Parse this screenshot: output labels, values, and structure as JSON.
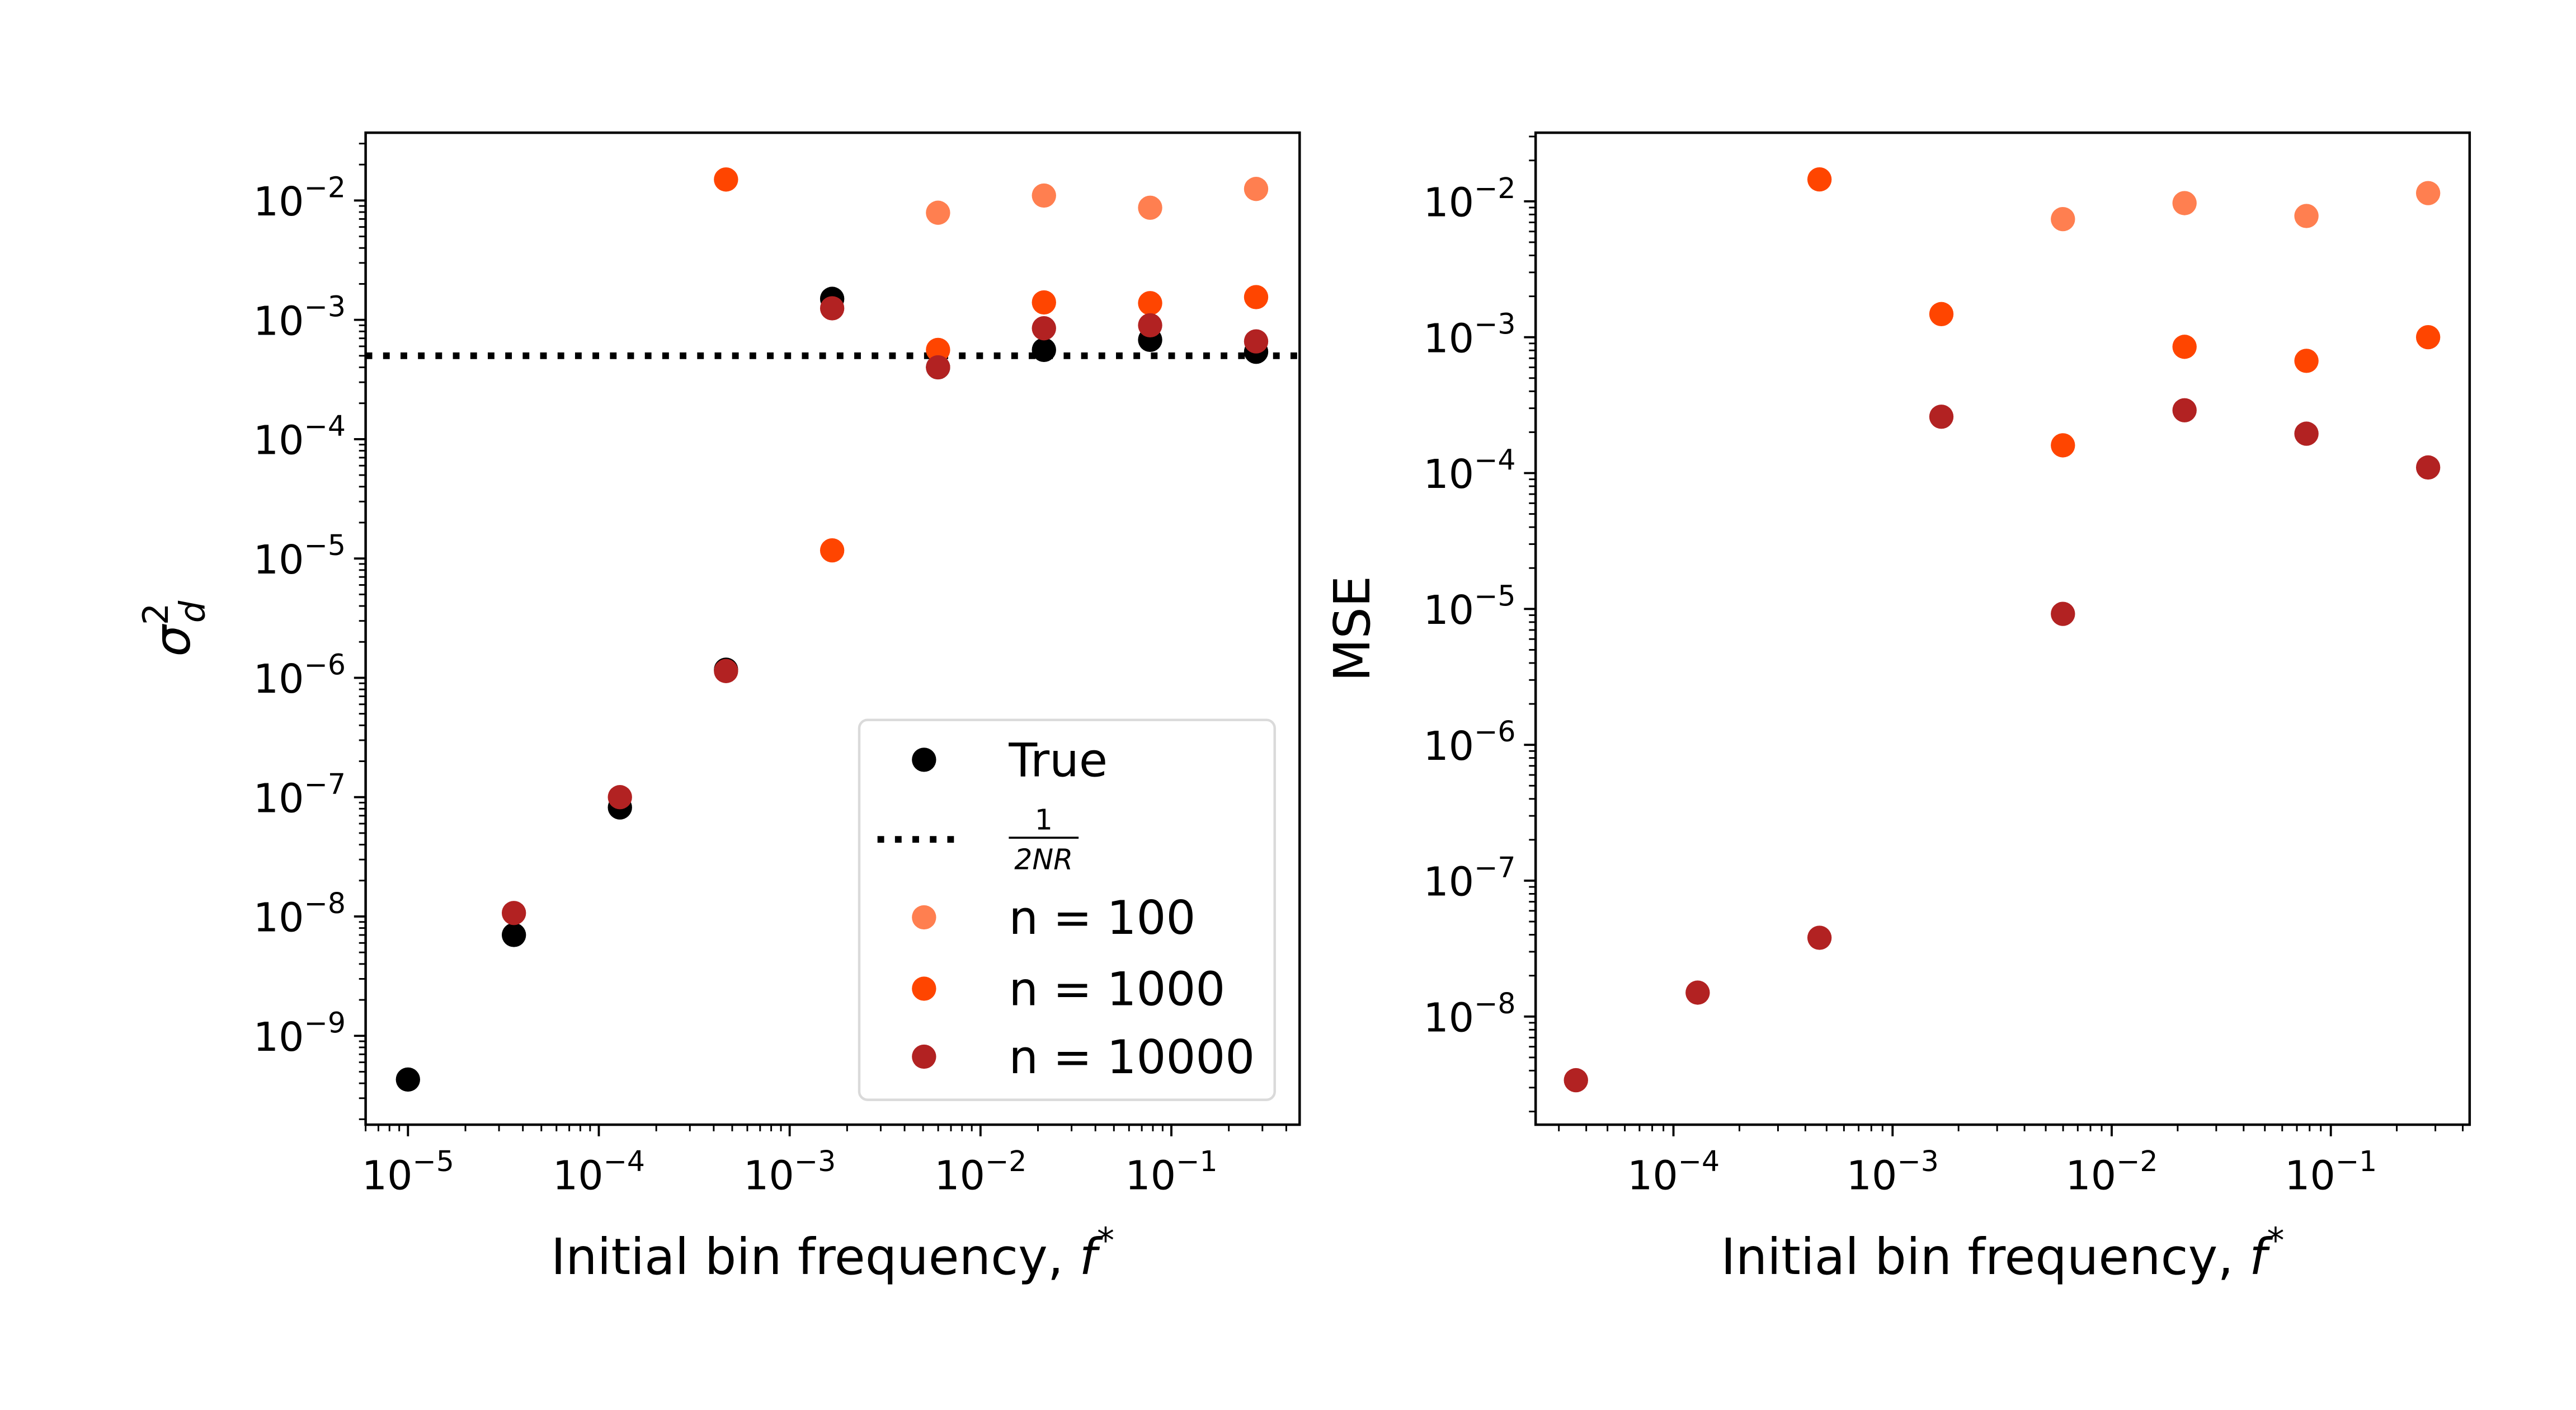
{
  "chart_data": [
    {
      "type": "scatter",
      "xlabel": "Initial bin frequency, ",
      "xlabel_var": "f",
      "xlabel_sup": "*",
      "ylabel": "σ",
      "ylabel_sub": "d",
      "ylabel_sup": "2",
      "xscale": "log",
      "yscale": "log",
      "xlim": [
        6e-06,
        0.47
      ],
      "ylim": [
        1.8e-10,
        0.037
      ],
      "xticks": [
        -5,
        -4,
        -3,
        -2,
        -1
      ],
      "yticks": [
        -9,
        -8,
        -7,
        -6,
        -5,
        -4,
        -3,
        -2
      ],
      "grid": false,
      "legend_placement": "lower right",
      "hline": {
        "y": 0.0005,
        "style": "dotted",
        "color": "#000000",
        "label_num": "1",
        "label_den": "2NR"
      },
      "series": [
        {
          "name": "True",
          "color": "#000000",
          "x": [
            1e-05,
            3.59e-05,
            0.000129,
            0.000464,
            0.00167,
            0.00599,
            0.0215,
            0.0774,
            0.278
          ],
          "y": [
            4.3e-10,
            7e-09,
            8.2e-08,
            1.17e-06,
            0.0015,
            0.0004,
            0.00056,
            0.00068,
            0.00054
          ]
        },
        {
          "name": "n = 100",
          "color": "#ff7f50",
          "x": [
            0.00599,
            0.0215,
            0.0774,
            0.278
          ],
          "y": [
            0.0079,
            0.011,
            0.0087,
            0.0125
          ]
        },
        {
          "name": "n = 1000",
          "color": "#ff4500",
          "x": [
            0.000464,
            0.00167,
            0.00599,
            0.0215,
            0.0774,
            0.278
          ],
          "y": [
            0.015,
            1.17e-05,
            0.00056,
            0.0014,
            0.00138,
            0.00155
          ]
        },
        {
          "name": "n = 10000",
          "color": "#b22222",
          "x": [
            3.59e-05,
            0.000129,
            0.000464,
            0.00167,
            0.00599,
            0.0215,
            0.0774,
            0.278
          ],
          "y": [
            1.07e-08,
            1e-07,
            1.14e-06,
            0.00125,
            0.0004,
            0.00085,
            0.0009,
            0.00066
          ]
        }
      ]
    },
    {
      "type": "scatter",
      "xlabel": "Initial bin frequency, ",
      "xlabel_var": "f",
      "xlabel_sup": "*",
      "ylabel": "MSE",
      "xscale": "log",
      "yscale": "log",
      "xlim": [
        2.35e-05,
        0.43
      ],
      "ylim": [
        1.6e-09,
        0.032
      ],
      "xticks": [
        -4,
        -3,
        -2,
        -1
      ],
      "yticks": [
        -8,
        -7,
        -6,
        -5,
        -4,
        -3,
        -2
      ],
      "grid": false,
      "series": [
        {
          "name": "n = 100",
          "color": "#ff7f50",
          "x": [
            0.00599,
            0.0215,
            0.0774,
            0.278
          ],
          "y": [
            0.0074,
            0.0097,
            0.0078,
            0.0115
          ]
        },
        {
          "name": "n = 1000",
          "color": "#ff4500",
          "x": [
            0.000464,
            0.00167,
            0.00599,
            0.0215,
            0.0774,
            0.278
          ],
          "y": [
            0.0145,
            0.00148,
            0.00016,
            0.00085,
            0.00067,
            0.001
          ]
        },
        {
          "name": "n = 10000",
          "color": "#b22222",
          "x": [
            3.59e-05,
            0.000129,
            0.000464,
            0.00167,
            0.00599,
            0.0215,
            0.0774,
            0.278
          ],
          "y": [
            3.4e-09,
            1.5e-08,
            3.8e-08,
            0.00026,
            9.2e-06,
            0.00029,
            0.000195,
            0.00011
          ]
        }
      ]
    }
  ]
}
